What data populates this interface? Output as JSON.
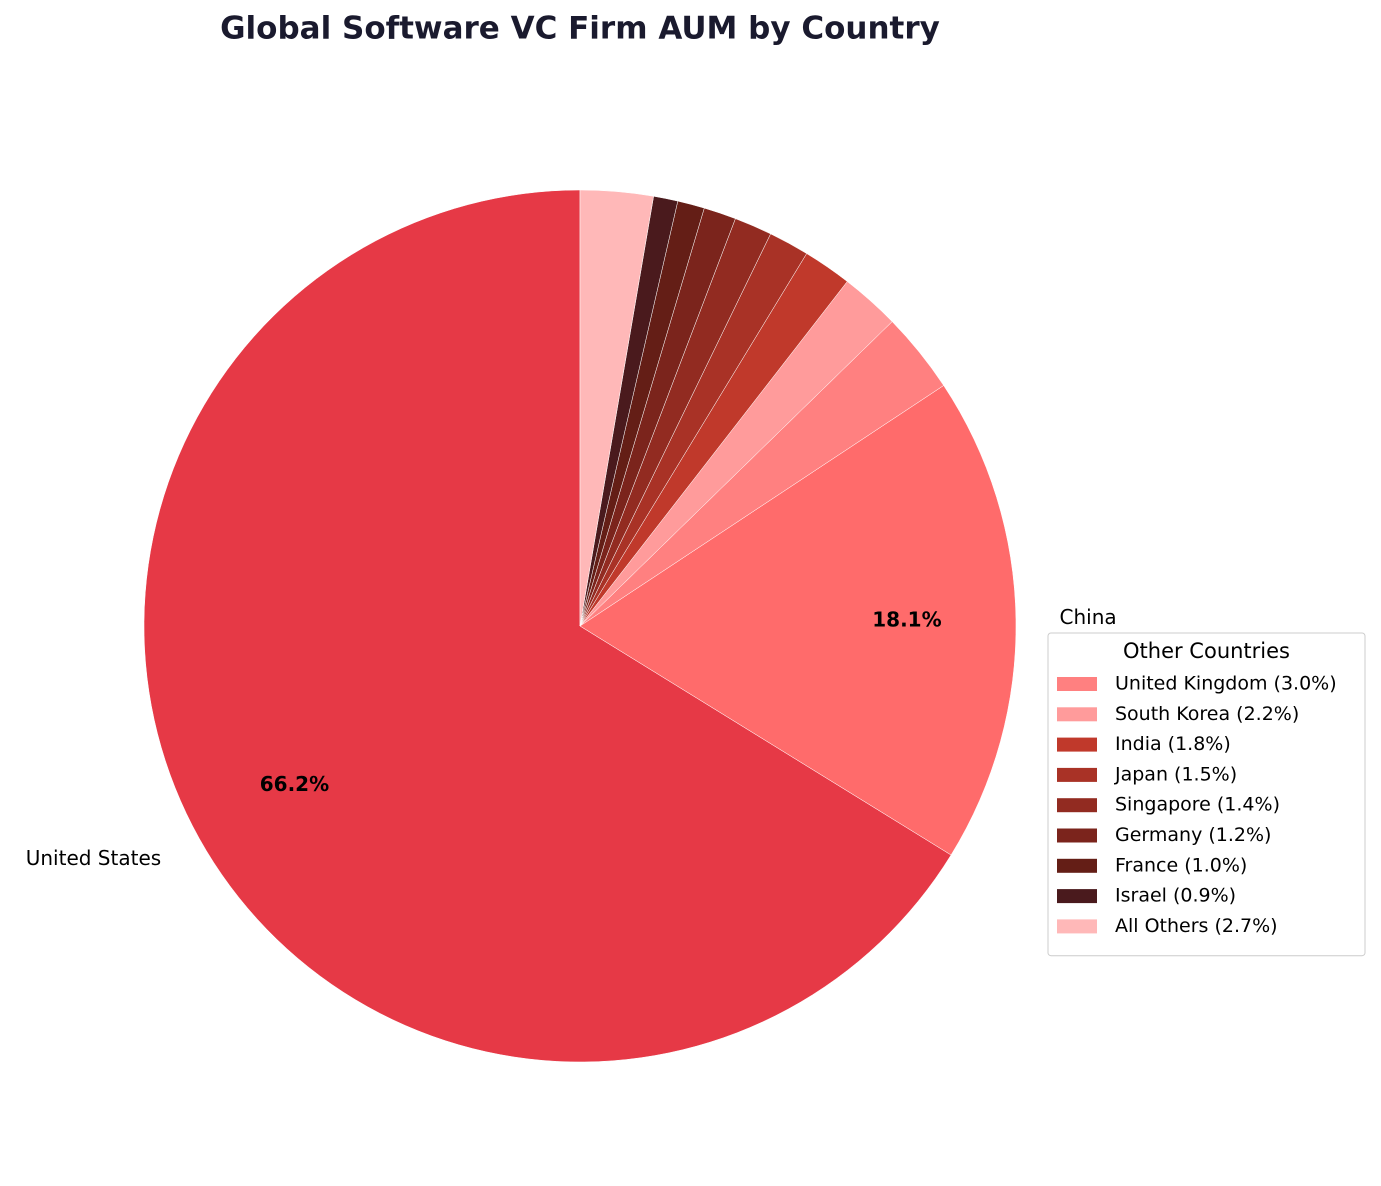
{
  "chart_data": {
    "type": "pie",
    "title": "Global Software VC Firm AUM by Country",
    "categories": [
      "United States",
      "China",
      null,
      null,
      null,
      null,
      null,
      null,
      null,
      null,
      null
    ],
    "values": [
      66.2,
      18.1,
      3.0,
      2.2,
      1.8,
      1.5,
      1.4,
      1.2,
      1.0,
      0.9,
      2.7
    ],
    "value_labels": [
      "66.2%",
      "18.1%",
      null,
      null,
      null,
      null,
      null,
      null,
      null,
      null,
      null
    ],
    "colors": [
      "#e63946",
      "#ff6b6b",
      "#ff8080",
      "#ff9b9b",
      "#c0392b",
      "#a93226",
      "#922b21",
      "#7b241c",
      "#641e16",
      "#4a1a1d",
      "#ffb8b8"
    ],
    "legend": {
      "title": "Other Countries",
      "position": "right",
      "labels": [
        null,
        null,
        "United Kingdom (3.0%)",
        "South Korea (2.2%)",
        "India (1.8%)",
        "Japan (1.5%)",
        "Singapore (1.4%)",
        "Germany (1.2%)",
        "France (1.0%)",
        "Israel (0.9%)",
        "All Others (2.7%)"
      ]
    },
    "start_angle": 90,
    "direction": "counterclockwise"
  }
}
